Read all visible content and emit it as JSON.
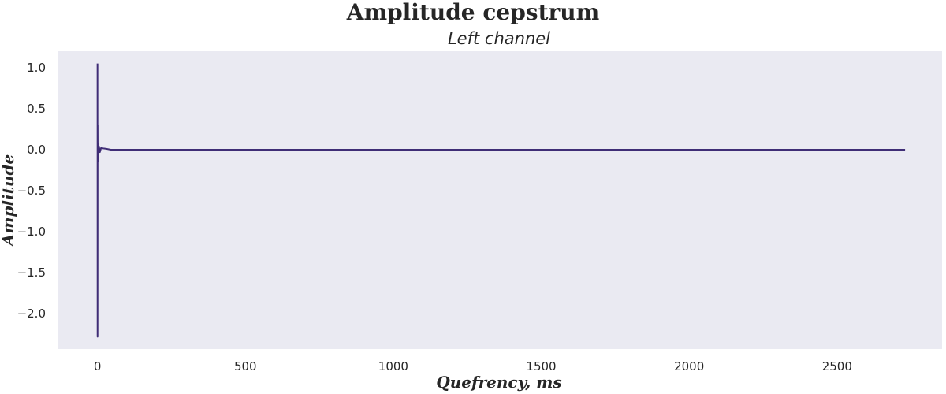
{
  "figure": {
    "suptitle": "Amplitude cepstrum"
  },
  "colors": {
    "plot_background": "#EAEAF2",
    "line": "#3F2D76",
    "text": "#262626"
  },
  "chart_data": {
    "type": "line",
    "title": "Left channel",
    "xlabel": "Quefrency, ms",
    "ylabel": "Amplitude",
    "xlim": [
      -135,
      2855
    ],
    "ylim": [
      -2.43,
      1.2
    ],
    "grid": false,
    "xticks": [
      0,
      500,
      1000,
      1500,
      2000,
      2500
    ],
    "xtick_labels": [
      "0",
      "500",
      "1000",
      "1500",
      "2000",
      "2500"
    ],
    "yticks": [
      1.0,
      0.5,
      0.0,
      -0.5,
      -1.0,
      -1.5,
      -2.0
    ],
    "ytick_labels": [
      "1.0",
      "0.5",
      "0.0",
      "−0.5",
      "−1.0",
      "−1.5",
      "−2.0"
    ],
    "series": [
      {
        "x": [
          0,
          0.2,
          0.5,
          1,
          2,
          3,
          5,
          8,
          12,
          20,
          30,
          45,
          60,
          100,
          200,
          500,
          1000,
          1500,
          2000,
          2500,
          2730
        ],
        "y": [
          1.05,
          -2.28,
          0.3,
          -0.15,
          0.08,
          -0.05,
          0.04,
          -0.03,
          0.02,
          0.015,
          0.01,
          0.0,
          0.0,
          0.0,
          0.0,
          0.0,
          0.0,
          0.0,
          0.0,
          0.0,
          0.0
        ]
      }
    ]
  }
}
